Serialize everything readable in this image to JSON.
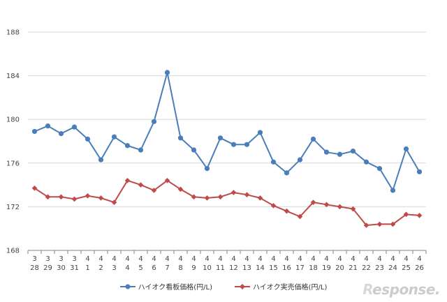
{
  "chart_data": {
    "type": "line",
    "x_top": [
      "3",
      "3",
      "3",
      "3",
      "4",
      "4",
      "4",
      "4",
      "4",
      "4",
      "4",
      "4",
      "4",
      "4",
      "4",
      "4",
      "4",
      "4",
      "4",
      "4",
      "4",
      "4",
      "4",
      "4",
      "4",
      "4",
      "4",
      "4",
      "4",
      "4"
    ],
    "x_bottom": [
      "28",
      "29",
      "30",
      "31",
      "1",
      "2",
      "3",
      "4",
      "5",
      "6",
      "7",
      "8",
      "9",
      "10",
      "11",
      "12",
      "13",
      "14",
      "15",
      "16",
      "17",
      "18",
      "19",
      "20",
      "21",
      "22",
      "23",
      "24",
      "25",
      "26"
    ],
    "ylim": [
      168,
      188
    ],
    "yticks": [
      168,
      172,
      176,
      180,
      184,
      188
    ],
    "series": [
      {
        "name": "ハイオク看板価格(円/L)",
        "color": "#4a7ebb",
        "marker": "circle",
        "values": [
          178.9,
          179.4,
          178.7,
          179.3,
          178.2,
          176.3,
          178.4,
          177.6,
          177.2,
          179.8,
          184.3,
          178.3,
          177.2,
          175.5,
          178.3,
          177.7,
          177.7,
          178.8,
          176.1,
          175.1,
          176.3,
          178.2,
          177.0,
          176.8,
          177.1,
          176.1,
          175.5,
          173.5,
          177.3,
          175.2
        ]
      },
      {
        "name": "ハイオク実売価格(円/L)",
        "color": "#be4b48",
        "marker": "diamond",
        "values": [
          173.7,
          172.9,
          172.9,
          172.7,
          173.0,
          172.8,
          172.4,
          174.4,
          174.0,
          173.5,
          174.4,
          173.6,
          172.9,
          172.8,
          172.9,
          173.3,
          173.1,
          172.8,
          172.1,
          171.6,
          171.1,
          172.4,
          172.2,
          172.0,
          171.8,
          170.3,
          170.4,
          170.4,
          171.3,
          171.2
        ]
      }
    ],
    "legend_position": "bottom",
    "grid": true
  },
  "watermark": {
    "text_prefix": "R",
    "text_rest": "esponse.",
    "prefix_color": "#d8d8d8",
    "rest_color": "#cccccc"
  }
}
